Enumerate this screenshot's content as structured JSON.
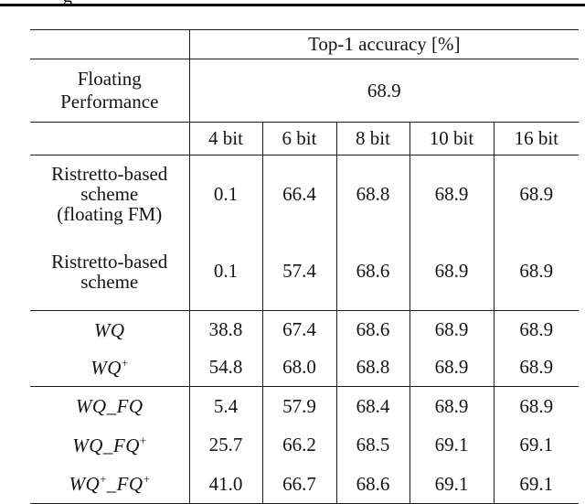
{
  "page_header": {
    "partial_glyph": "g"
  },
  "table": {
    "top1_header": "Top-1 accuracy [%]",
    "floating_row": {
      "label_lines": [
        "Floating",
        "Performance"
      ],
      "value": "68.9"
    },
    "bit_columns": [
      "4 bit",
      "6 bit",
      "8 bit",
      "10 bit",
      "16 bit"
    ],
    "rows": [
      {
        "label_type": "plain",
        "label_lines": [
          "Ristretto-based",
          "scheme",
          "(floating FM)"
        ],
        "values": [
          "0.1",
          "66.4",
          "68.8",
          "68.9",
          "68.9"
        ],
        "rule_below": false
      },
      {
        "label_type": "plain",
        "label_lines": [
          "Ristretto-based",
          "scheme"
        ],
        "values": [
          "0.1",
          "57.4",
          "68.6",
          "68.9",
          "68.9"
        ],
        "rule_below": true
      },
      {
        "label_type": "math",
        "label_parts": [
          {
            "t": "WQ"
          }
        ],
        "values": [
          "38.8",
          "67.4",
          "68.6",
          "68.9",
          "68.9"
        ],
        "rule_below": false
      },
      {
        "label_type": "math",
        "label_parts": [
          {
            "t": "WQ"
          },
          {
            "t": "+",
            "sup": true
          }
        ],
        "values": [
          "54.8",
          "68.0",
          "68.8",
          "68.9",
          "68.9"
        ],
        "rule_below": true
      },
      {
        "label_type": "math",
        "label_parts": [
          {
            "t": "WQ_FQ"
          }
        ],
        "values": [
          "5.4",
          "57.9",
          "68.4",
          "68.9",
          "68.9"
        ],
        "rule_below": false
      },
      {
        "label_type": "math",
        "label_parts": [
          {
            "t": "WQ_FQ"
          },
          {
            "t": "+",
            "sup": true
          }
        ],
        "values": [
          "25.7",
          "66.2",
          "68.5",
          "69.1",
          "69.1"
        ],
        "rule_below": false
      },
      {
        "label_type": "math",
        "label_parts": [
          {
            "t": "WQ"
          },
          {
            "t": "+",
            "sup": true
          },
          {
            "t": "_FQ"
          },
          {
            "t": "+",
            "sup": true
          }
        ],
        "values": [
          "41.0",
          "66.7",
          "68.6",
          "69.1",
          "69.1"
        ],
        "rule_below": true
      }
    ],
    "colors": {
      "text": "#141414",
      "line": "#1c1c1c",
      "background": "#ffffff"
    }
  }
}
